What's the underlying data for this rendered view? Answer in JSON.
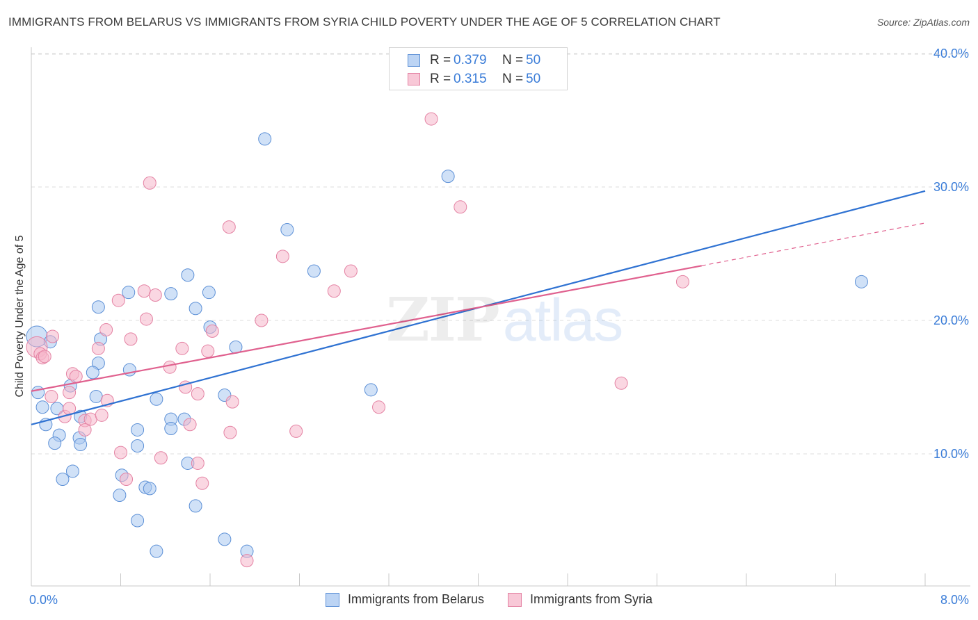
{
  "title": "IMMIGRANTS FROM BELARUS VS IMMIGRANTS FROM SYRIA CHILD POVERTY UNDER THE AGE OF 5 CORRELATION CHART",
  "source": "Source: ZipAtlas.com",
  "watermark": {
    "zip": "ZIP",
    "atlas": "atlas"
  },
  "legend": {
    "r_label": "R =",
    "n_label": "N =",
    "rows": [
      {
        "r": "0.379",
        "n": "50"
      },
      {
        "r": "0.315",
        "n": "50"
      }
    ]
  },
  "colors": {
    "belarus_fill": "#a9c8f0",
    "belarus_stroke": "#5b8fd6",
    "belarus_line": "#2f72d2",
    "syria_fill": "#f6b6cb",
    "syria_stroke": "#e482a3",
    "syria_line": "#e0608e",
    "axis_label": "#3b7dd8",
    "grid": "#dcdcdc"
  },
  "chart_data": {
    "type": "scatter",
    "xlabel": "",
    "ylabel": "Child Poverty Under the Age of 5",
    "xlim": [
      0,
      8
    ],
    "ylim": [
      0,
      42
    ],
    "x_tick_labels": [
      "0.0%",
      "8.0%"
    ],
    "y_ticks": [
      10,
      20,
      30,
      40
    ],
    "y_tick_labels": [
      "10.0%",
      "20.0%",
      "30.0%",
      "40.0%"
    ],
    "grid": "horizontal dashed",
    "legend_position": "top-center",
    "series": [
      {
        "name": "Immigrants from Belarus",
        "points": [
          [
            0.05,
            18.8
          ],
          [
            0.17,
            18.4
          ],
          [
            0.06,
            14.6
          ],
          [
            0.1,
            13.5
          ],
          [
            0.13,
            12.2
          ],
          [
            0.23,
            13.4
          ],
          [
            0.35,
            15.1
          ],
          [
            0.44,
            12.8
          ],
          [
            0.25,
            11.4
          ],
          [
            0.21,
            10.8
          ],
          [
            0.43,
            11.2
          ],
          [
            0.44,
            10.7
          ],
          [
            0.28,
            8.1
          ],
          [
            0.37,
            8.7
          ],
          [
            0.58,
            14.3
          ],
          [
            0.6,
            16.8
          ],
          [
            0.55,
            16.1
          ],
          [
            0.62,
            18.6
          ],
          [
            0.6,
            21.0
          ],
          [
            0.87,
            22.1
          ],
          [
            0.88,
            16.3
          ],
          [
            0.81,
            8.4
          ],
          [
            0.79,
            6.9
          ],
          [
            0.95,
            10.6
          ],
          [
            0.95,
            11.8
          ],
          [
            1.02,
            7.5
          ],
          [
            1.06,
            7.4
          ],
          [
            0.95,
            5.0
          ],
          [
            1.12,
            14.1
          ],
          [
            1.12,
            2.7
          ],
          [
            1.25,
            22.0
          ],
          [
            1.25,
            12.6
          ],
          [
            1.25,
            11.9
          ],
          [
            1.4,
            23.4
          ],
          [
            1.37,
            12.6
          ],
          [
            1.4,
            9.3
          ],
          [
            1.47,
            20.9
          ],
          [
            1.47,
            6.1
          ],
          [
            1.59,
            22.1
          ],
          [
            1.6,
            19.5
          ],
          [
            1.73,
            14.4
          ],
          [
            1.73,
            3.6
          ],
          [
            1.83,
            18.0
          ],
          [
            1.93,
            2.7
          ],
          [
            2.09,
            33.6
          ],
          [
            2.29,
            26.8
          ],
          [
            2.53,
            23.7
          ],
          [
            3.04,
            14.8
          ],
          [
            3.73,
            30.8
          ],
          [
            7.43,
            22.9
          ]
        ],
        "trend": {
          "x": [
            0,
            8
          ],
          "y": [
            12.2,
            29.7
          ]
        }
      },
      {
        "name": "Immigrants from Syria",
        "points": [
          [
            0.05,
            18.0
          ],
          [
            0.08,
            17.5
          ],
          [
            0.1,
            17.2
          ],
          [
            0.12,
            17.3
          ],
          [
            0.19,
            18.8
          ],
          [
            0.18,
            14.3
          ],
          [
            0.3,
            12.8
          ],
          [
            0.34,
            13.4
          ],
          [
            0.37,
            16.0
          ],
          [
            0.4,
            15.8
          ],
          [
            0.34,
            14.6
          ],
          [
            0.48,
            12.5
          ],
          [
            0.53,
            12.6
          ],
          [
            0.48,
            11.8
          ],
          [
            0.6,
            17.9
          ],
          [
            0.63,
            12.9
          ],
          [
            0.68,
            14.0
          ],
          [
            0.67,
            19.3
          ],
          [
            0.78,
            21.5
          ],
          [
            0.8,
            10.1
          ],
          [
            0.89,
            18.6
          ],
          [
            0.85,
            8.1
          ],
          [
            1.01,
            22.2
          ],
          [
            1.03,
            20.1
          ],
          [
            1.06,
            30.3
          ],
          [
            1.11,
            21.9
          ],
          [
            1.16,
            9.7
          ],
          [
            1.24,
            16.5
          ],
          [
            1.35,
            17.9
          ],
          [
            1.38,
            15.0
          ],
          [
            1.42,
            12.2
          ],
          [
            1.49,
            9.3
          ],
          [
            1.49,
            14.5
          ],
          [
            1.53,
            7.8
          ],
          [
            1.58,
            17.7
          ],
          [
            1.62,
            19.2
          ],
          [
            1.77,
            27.0
          ],
          [
            1.78,
            11.6
          ],
          [
            1.8,
            13.9
          ],
          [
            1.93,
            2.0
          ],
          [
            2.06,
            20.0
          ],
          [
            2.25,
            24.8
          ],
          [
            2.37,
            11.7
          ],
          [
            2.71,
            22.2
          ],
          [
            2.86,
            23.7
          ],
          [
            3.11,
            13.5
          ],
          [
            3.58,
            35.1
          ],
          [
            3.84,
            28.5
          ],
          [
            5.28,
            15.3
          ],
          [
            5.83,
            22.9
          ]
        ],
        "trend": {
          "x": [
            0,
            6.0
          ],
          "y": [
            14.7,
            24.1
          ]
        },
        "trend_extension": {
          "x": [
            6.0,
            8
          ],
          "y": [
            24.1,
            27.3
          ]
        }
      }
    ]
  }
}
